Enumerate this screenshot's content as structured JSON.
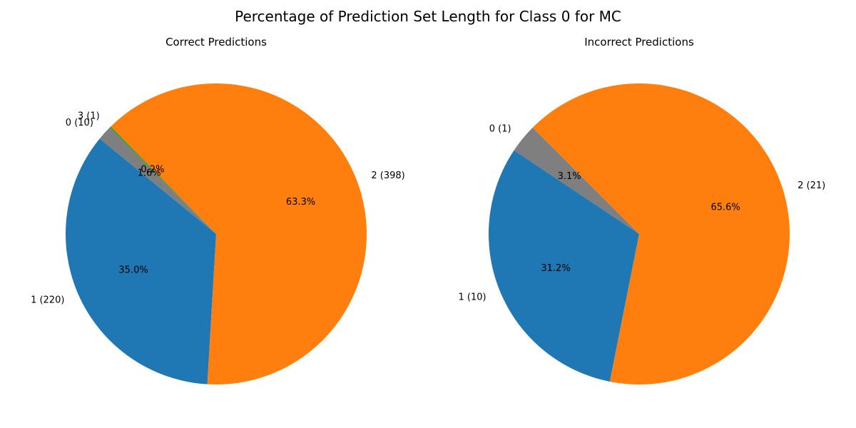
{
  "figure": {
    "title": "Percentage of Prediction Set Length for Class 0 for MC"
  },
  "chart_data": [
    {
      "type": "pie",
      "title": "Correct Predictions",
      "start_angle_deg": 135,
      "direction": "counterclockwise",
      "slices": [
        {
          "label": "0 (10)",
          "value": 10,
          "percent_label": "1.6%",
          "color": "#7f7f7f"
        },
        {
          "label": "1 (220)",
          "value": 220,
          "percent_label": "35.0%",
          "color": "#1f77b4"
        },
        {
          "label": "2 (398)",
          "value": 398,
          "percent_label": "63.3%",
          "color": "#ff7f0e"
        },
        {
          "label": "3 (1)",
          "value": 1,
          "percent_label": "0.2%",
          "color": "#2ca02c"
        }
      ]
    },
    {
      "type": "pie",
      "title": "Incorrect Predictions",
      "start_angle_deg": 135,
      "direction": "counterclockwise",
      "slices": [
        {
          "label": "0 (1)",
          "value": 1,
          "percent_label": "3.1%",
          "color": "#7f7f7f"
        },
        {
          "label": "1 (10)",
          "value": 10,
          "percent_label": "31.2%",
          "color": "#1f77b4"
        },
        {
          "label": "2 (21)",
          "value": 21,
          "percent_label": "65.6%",
          "color": "#ff7f0e"
        }
      ]
    }
  ]
}
